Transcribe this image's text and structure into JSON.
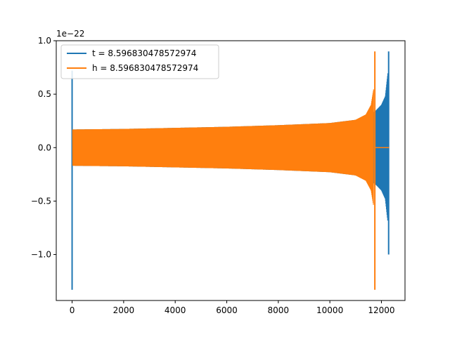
{
  "chart_data": {
    "type": "line",
    "offset_text": "1e−22",
    "x_ticks": [
      0,
      2000,
      4000,
      6000,
      8000,
      10000,
      12000
    ],
    "x_tick_labels": [
      "0",
      "2000",
      "4000",
      "6000",
      "8000",
      "10000",
      "12000"
    ],
    "y_ticks": [
      -1.0,
      -0.5,
      0.0,
      0.5,
      1.0
    ],
    "y_tick_labels": [
      "−1.0",
      "−0.5",
      "0.0",
      "0.5",
      "1.0"
    ],
    "xlim": [
      -615,
      12915
    ],
    "ylim": [
      -1.43,
      1.0
    ],
    "legend_position": "upper-left",
    "series": [
      {
        "name": "t = 8.596830478572974",
        "color": "#1f77b4",
        "x_range": [
          0,
          12300
        ],
        "transient_spike": {
          "x": 0,
          "min": -1.33,
          "max": 0.72
        },
        "envelope": [
          {
            "x": 20,
            "amp": 0.17
          },
          {
            "x": 2000,
            "amp": 0.175
          },
          {
            "x": 4000,
            "amp": 0.185
          },
          {
            "x": 6000,
            "amp": 0.195
          },
          {
            "x": 8000,
            "amp": 0.21
          },
          {
            "x": 10000,
            "amp": 0.23
          },
          {
            "x": 11000,
            "amp": 0.26
          },
          {
            "x": 11500,
            "amp": 0.3
          },
          {
            "x": 11750,
            "amp": 0.34
          },
          {
            "x": 11800,
            "amp": 0.35
          },
          {
            "x": 12000,
            "amp": 0.4
          },
          {
            "x": 12150,
            "amp": 0.48
          },
          {
            "x": 12250,
            "amp": 0.7
          }
        ],
        "final_spike": {
          "x": 12280,
          "min": -1.0,
          "max": 0.9
        }
      },
      {
        "name": "h = 8.596830478572974",
        "color": "#ff7f0e",
        "x_range": [
          0,
          12300
        ],
        "envelope": [
          {
            "x": 20,
            "amp": 0.17
          },
          {
            "x": 2000,
            "amp": 0.175
          },
          {
            "x": 4000,
            "amp": 0.185
          },
          {
            "x": 6000,
            "amp": 0.195
          },
          {
            "x": 8000,
            "amp": 0.21
          },
          {
            "x": 10000,
            "amp": 0.23
          },
          {
            "x": 11000,
            "amp": 0.26
          },
          {
            "x": 11400,
            "amp": 0.31
          },
          {
            "x": 11600,
            "amp": 0.4
          },
          {
            "x": 11700,
            "amp": 0.55
          }
        ],
        "merger_spike": {
          "x": 11745,
          "min": -1.33,
          "max": 0.9
        },
        "ringdown_flat": {
          "from": 11760,
          "to": 12300,
          "value": 0.0
        }
      }
    ]
  }
}
